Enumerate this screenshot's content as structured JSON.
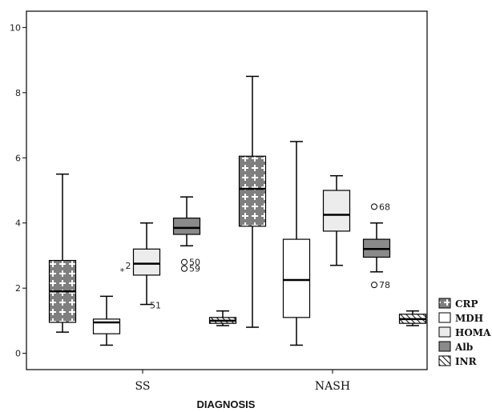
{
  "chart_data": {
    "type": "box",
    "xlabel": "DIAGNOSIS",
    "ylabel": "",
    "ylim": [
      -0.5,
      10.5
    ],
    "yticks": [
      0,
      2,
      4,
      6,
      8,
      10
    ],
    "categories": [
      "SS",
      "NASH"
    ],
    "grid": false,
    "legend_position": "right",
    "series": [
      {
        "name": "CRP",
        "fill": "crosshatch",
        "boxes": [
          {
            "category": "SS",
            "min": 0.65,
            "q1": 0.95,
            "median": 1.9,
            "q3": 2.85,
            "max": 5.5,
            "outliers": []
          },
          {
            "category": "NASH",
            "min": 0.8,
            "q1": 3.9,
            "median": 5.05,
            "q3": 6.05,
            "max": 8.5,
            "outliers": []
          }
        ]
      },
      {
        "name": "MDH",
        "fill": "#ffffff",
        "boxes": [
          {
            "category": "SS",
            "min": 0.25,
            "q1": 0.6,
            "median": 0.95,
            "q3": 1.05,
            "max": 1.75,
            "outliers": []
          },
          {
            "category": "NASH",
            "min": 0.25,
            "q1": 1.1,
            "median": 2.25,
            "q3": 3.5,
            "max": 6.5,
            "outliers": []
          }
        ]
      },
      {
        "name": "HOMA",
        "fill": "#ececec",
        "boxes": [
          {
            "category": "SS",
            "min": 1.5,
            "q1": 2.4,
            "median": 2.75,
            "q3": 3.2,
            "max": 4.0,
            "outliers": [
              {
                "value": 1.5,
                "label": "51",
                "marker": "none"
              },
              {
                "value": 2.55,
                "label": "2",
                "marker": "star"
              }
            ]
          },
          {
            "category": "NASH",
            "min": 2.7,
            "q1": 3.75,
            "median": 4.25,
            "q3": 5.0,
            "max": 5.45,
            "outliers": []
          }
        ]
      },
      {
        "name": "Alb",
        "fill": "#8a8a8a",
        "boxes": [
          {
            "category": "SS",
            "min": 3.3,
            "q1": 3.65,
            "median": 3.85,
            "q3": 4.15,
            "max": 4.8,
            "outliers": [
              {
                "value": 2.8,
                "label": "50",
                "marker": "circle"
              },
              {
                "value": 2.6,
                "label": "59",
                "marker": "circle"
              }
            ]
          },
          {
            "category": "NASH",
            "min": 2.5,
            "q1": 2.95,
            "median": 3.2,
            "q3": 3.5,
            "max": 4.0,
            "outliers": [
              {
                "value": 4.5,
                "label": "68",
                "marker": "circle"
              },
              {
                "value": 2.1,
                "label": "78",
                "marker": "circle"
              }
            ]
          }
        ]
      },
      {
        "name": "INR",
        "fill": "diagonal",
        "boxes": [
          {
            "category": "SS",
            "min": 0.85,
            "q1": 0.92,
            "median": 1.0,
            "q3": 1.1,
            "max": 1.3,
            "outliers": []
          },
          {
            "category": "NASH",
            "min": 0.85,
            "q1": 0.92,
            "median": 1.05,
            "q3": 1.2,
            "max": 1.3,
            "outliers": []
          }
        ]
      }
    ]
  }
}
